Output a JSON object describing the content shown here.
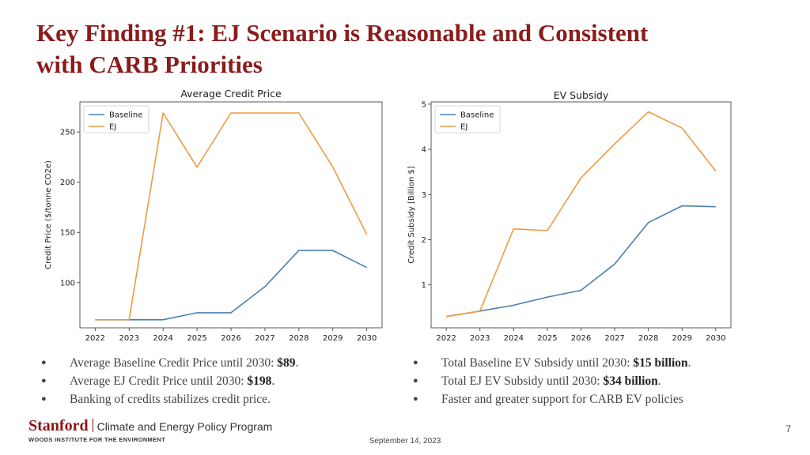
{
  "slide": {
    "title_line1": "Key Finding #1: EJ Scenario is Reasonable and Consistent",
    "title_line2": "with CARB Priorities",
    "date": "September 14, 2023",
    "page_number": "7",
    "title_color": "#8a1c1c"
  },
  "logo": {
    "stanford": "Stanford",
    "program": "Climate and Energy Policy Program",
    "institute": "WOODS INSTITUTE FOR THE ENVIRONMENT"
  },
  "bullets_left": [
    {
      "text": "Average Baseline Credit Price until 2030: ",
      "bold": "$89",
      "tail": "."
    },
    {
      "text": "Average EJ Credit Price until 2030: ",
      "bold": "$198",
      "tail": "."
    },
    {
      "text": "Banking of credits stabilizes credit price.",
      "bold": "",
      "tail": ""
    }
  ],
  "bullets_right": [
    {
      "text": "Total Baseline EV Subsidy until 2030: ",
      "bold": "$15 billion",
      "tail": "."
    },
    {
      "text": "Total EJ EV Subsidy until 2030: ",
      "bold": "$34 billion",
      "tail": "."
    },
    {
      "text": "Faster and greater support for CARB EV policies",
      "bold": "",
      "tail": ""
    }
  ],
  "chart_data": [
    {
      "type": "line",
      "title": "Average Credit Price",
      "xlabel": "",
      "ylabel": "Credit Price ($/tonne CO2e)",
      "x": [
        2022,
        2023,
        2024,
        2025,
        2026,
        2027,
        2028,
        2029,
        2030
      ],
      "xlim": [
        2021.55,
        2030.45
      ],
      "ylim": [
        55,
        280
      ],
      "yticks": [
        100,
        150,
        200,
        250
      ],
      "legend": "top-left",
      "grid": false,
      "series": [
        {
          "name": "Baseline",
          "color": "#4a80b0",
          "values": [
            63,
            63,
            63,
            70,
            70,
            96,
            132,
            132,
            115
          ]
        },
        {
          "name": "EJ",
          "color": "#ee9a43",
          "values": [
            63,
            63,
            269,
            215,
            269,
            269,
            269,
            215,
            148
          ]
        }
      ]
    },
    {
      "type": "line",
      "title": "EV Subsidy",
      "xlabel": "",
      "ylabel": "Credit Subsidy [Billion $]",
      "x": [
        2022,
        2023,
        2024,
        2025,
        2026,
        2027,
        2028,
        2029,
        2030
      ],
      "xlim": [
        2021.55,
        2030.45
      ],
      "ylim": [
        0.05,
        5.05
      ],
      "yticks": [
        1,
        2,
        3,
        4,
        5
      ],
      "legend": "top-left",
      "grid": false,
      "series": [
        {
          "name": "Baseline",
          "color": "#4a80b0",
          "values": [
            0.3,
            0.42,
            0.55,
            0.73,
            0.88,
            1.46,
            2.38,
            2.75,
            2.73
          ]
        },
        {
          "name": "EJ",
          "color": "#ee9a43",
          "values": [
            0.3,
            0.42,
            2.24,
            2.2,
            3.37,
            4.12,
            4.83,
            4.47,
            3.52
          ]
        }
      ]
    }
  ]
}
